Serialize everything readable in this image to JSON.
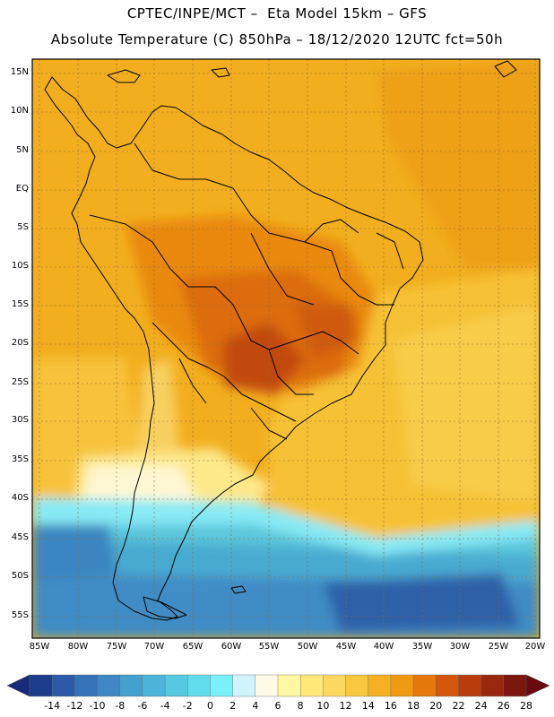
{
  "title_line1": "CPTEC/INPE/MCT –  Eta Model 15km – GFS",
  "title_line2": "Absolute Temperature (C) 850hPa – 18/12/2020 12UTC fct=50h",
  "lat_labels": [
    "15N",
    "10N",
    "5N",
    "EQ",
    "5S",
    "10S",
    "15S",
    "20S",
    "25S",
    "30S",
    "35S",
    "40S",
    "45S",
    "50S",
    "55S"
  ],
  "lon_labels": [
    "85W",
    "80W",
    "75W",
    "70W",
    "65W",
    "60W",
    "55W",
    "50W",
    "45W",
    "40W",
    "35W",
    "30W",
    "25W",
    "20W"
  ],
  "colorbar": {
    "labels": [
      "-14",
      "-12",
      "-10",
      "-8",
      "-6",
      "-4",
      "-2",
      "0",
      "2",
      "4",
      "6",
      "8",
      "10",
      "12",
      "14",
      "16",
      "18",
      "20",
      "22",
      "24",
      "26",
      "28"
    ],
    "colors": [
      "#1c3c8c",
      "#2b5aa8",
      "#3672b8",
      "#3f86c4",
      "#44a0cc",
      "#4cb4d8",
      "#56c8e0",
      "#60dced",
      "#7af0f8",
      "#d0f4fc",
      "#fffae6",
      "#fff8a0",
      "#fde878",
      "#fcd860",
      "#f8c840",
      "#f4b020",
      "#ef9a12",
      "#e6780c",
      "#d4560c",
      "#b83c0c",
      "#982810",
      "#7a1810"
    ],
    "low_color": "#1a2a7a",
    "high_color": "#6a0a10"
  },
  "colors": {
    "background": "#f3ae1e",
    "land_outline": "#000000",
    "grid": "#9a7a40"
  }
}
